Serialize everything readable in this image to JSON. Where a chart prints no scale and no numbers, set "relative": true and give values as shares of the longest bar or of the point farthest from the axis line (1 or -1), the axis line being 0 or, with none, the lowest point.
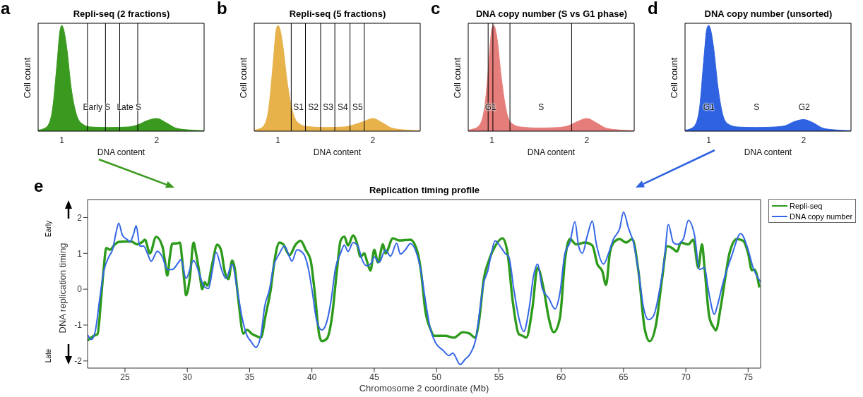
{
  "chart_data": [
    {
      "type": "area",
      "title": "Repli-seq (2 fractions)",
      "xlabel": "DNA content",
      "ylabel": "Cell count",
      "relative": true,
      "color": "#3a9a1f",
      "xlim": [
        0.75,
        2.5
      ],
      "xticks": [
        1,
        2
      ],
      "x": [
        0.75,
        0.8,
        0.85,
        0.9,
        0.95,
        0.98,
        1.0,
        1.02,
        1.05,
        1.1,
        1.15,
        1.2,
        1.3,
        1.5,
        1.7,
        1.8,
        1.9,
        2.0,
        2.1,
        2.2,
        2.3,
        2.5
      ],
      "values": [
        0.01,
        0.02,
        0.05,
        0.2,
        0.65,
        0.95,
        1,
        0.96,
        0.8,
        0.4,
        0.17,
        0.08,
        0.04,
        0.035,
        0.04,
        0.06,
        0.1,
        0.12,
        0.08,
        0.03,
        0.015,
        0.005
      ],
      "ref_lines": [
        {
          "axis": "x",
          "value": 1.27
        },
        {
          "axis": "x",
          "value": 1.46
        },
        {
          "axis": "x",
          "value": 1.61
        },
        {
          "axis": "x",
          "value": 1.8
        }
      ],
      "annotations": [
        "a",
        "Early S",
        "Late S"
      ]
    },
    {
      "type": "area",
      "title": "Repli-seq (5 fractions)",
      "xlabel": "DNA content",
      "ylabel": "Cell count",
      "relative": true,
      "color": "#e8b24a",
      "xlim": [
        0.75,
        2.5
      ],
      "xticks": [
        1,
        2
      ],
      "x": [
        0.75,
        0.8,
        0.85,
        0.9,
        0.95,
        0.98,
        1.0,
        1.02,
        1.05,
        1.1,
        1.15,
        1.2,
        1.3,
        1.5,
        1.7,
        1.8,
        1.9,
        2.0,
        2.1,
        2.2,
        2.3,
        2.5
      ],
      "values": [
        0.01,
        0.02,
        0.05,
        0.2,
        0.65,
        0.95,
        1,
        0.97,
        0.82,
        0.45,
        0.2,
        0.09,
        0.045,
        0.035,
        0.04,
        0.06,
        0.09,
        0.12,
        0.08,
        0.03,
        0.015,
        0.005
      ],
      "ref_lines": [
        {
          "axis": "x",
          "value": 1.14
        },
        {
          "axis": "x",
          "value": 1.29
        },
        {
          "axis": "x",
          "value": 1.45
        },
        {
          "axis": "x",
          "value": 1.6
        },
        {
          "axis": "x",
          "value": 1.76
        },
        {
          "axis": "x",
          "value": 1.91
        }
      ],
      "annotations": [
        "b",
        "S1",
        "S2",
        "S3",
        "S4",
        "S5"
      ]
    },
    {
      "type": "area",
      "title": "DNA copy number (S vs G1 phase)",
      "xlabel": "DNA content",
      "ylabel": "Cell count",
      "relative": true,
      "color": "#e57d7a",
      "xlim": [
        0.75,
        2.5
      ],
      "xticks": [
        1,
        2
      ],
      "x": [
        0.75,
        0.8,
        0.85,
        0.9,
        0.95,
        0.98,
        1.0,
        1.02,
        1.05,
        1.1,
        1.15,
        1.2,
        1.3,
        1.5,
        1.7,
        1.8,
        1.9,
        2.0,
        2.1,
        2.2,
        2.3,
        2.5
      ],
      "values": [
        0.01,
        0.02,
        0.04,
        0.12,
        0.45,
        0.8,
        0.97,
        1,
        0.9,
        0.5,
        0.2,
        0.08,
        0.04,
        0.03,
        0.035,
        0.05,
        0.09,
        0.12,
        0.08,
        0.03,
        0.015,
        0.005
      ],
      "ref_lines": [
        {
          "axis": "x",
          "value": 0.96
        },
        {
          "axis": "x",
          "value": 1.01
        },
        {
          "axis": "x",
          "value": 1.19
        },
        {
          "axis": "x",
          "value": 1.84
        }
      ],
      "annotations": [
        "c",
        "G1",
        "S"
      ]
    },
    {
      "type": "area",
      "title": "DNA copy number (unsorted)",
      "xlabel": "DNA content",
      "ylabel": "Cell count",
      "relative": true,
      "color": "#2f62e0",
      "xlim": [
        0.75,
        2.5
      ],
      "xticks": [
        1,
        2
      ],
      "x": [
        0.75,
        0.8,
        0.85,
        0.9,
        0.95,
        0.98,
        1.0,
        1.02,
        1.05,
        1.1,
        1.15,
        1.2,
        1.3,
        1.5,
        1.7,
        1.8,
        1.9,
        2.0,
        2.1,
        2.2,
        2.3,
        2.5
      ],
      "values": [
        0.01,
        0.02,
        0.05,
        0.2,
        0.7,
        0.97,
        1,
        0.96,
        0.8,
        0.4,
        0.15,
        0.07,
        0.04,
        0.035,
        0.04,
        0.05,
        0.09,
        0.11,
        0.08,
        0.03,
        0.015,
        0.005
      ],
      "annotations": [
        "d",
        "G1",
        "S",
        "G2"
      ]
    },
    {
      "type": "line",
      "title": "Replication timing profile",
      "xlabel": "Chromosome 2 coordinate (Mb)",
      "ylabel": "DNA replication timing",
      "xlim": [
        22,
        76
      ],
      "xticks": [
        25,
        30,
        35,
        40,
        45,
        50,
        55,
        60,
        65,
        70,
        75
      ],
      "ylim": [
        -2.2,
        2.5
      ],
      "yticks": [
        -2,
        -1,
        0,
        1,
        2
      ],
      "legend": "top right",
      "annotations": [
        "e",
        "Early",
        "Late"
      ],
      "series": [
        {
          "name": "Repli-seq",
          "color": "#2c9a1a",
          "x": [
            22,
            22.5,
            22.8,
            23.1,
            23.3,
            23.5,
            23.8,
            24.2,
            24.5,
            25,
            25.5,
            26,
            26.4,
            26.6,
            27,
            27.5,
            28,
            28.2,
            28.4,
            28.6,
            28.8,
            29.2,
            29.4,
            29.6,
            29.8,
            29.9,
            30.2,
            30.5,
            30.7,
            31,
            31.2,
            31.4,
            31.6,
            32,
            32.4,
            32.7,
            33,
            33.3,
            33.6,
            33.8,
            34.1,
            34.5,
            34.8,
            35.2,
            35.5,
            35.9,
            36.3,
            36.7,
            37,
            37.4,
            37.7,
            38.2,
            38.7,
            39.1,
            39.5,
            39.9,
            40.2,
            40.6,
            40.8,
            41.2,
            41.6,
            42,
            42.3,
            42.6,
            42.9,
            43.3,
            43.6,
            43.9,
            44.2,
            44.4,
            44.7,
            45,
            45.3,
            45.7,
            45.9,
            46.5,
            47,
            47.9,
            48.5,
            48.75,
            49.1,
            49.5,
            49.8,
            50.7,
            51.4,
            52.1,
            52.6,
            53.1,
            53.4,
            53.8,
            54.2,
            54.7,
            55.3,
            55.7,
            56.1,
            56.6,
            56.9,
            57.2,
            57.7,
            58.1,
            58.6,
            59,
            59.4,
            59.9,
            60.3,
            60.7,
            61.2,
            61.9,
            62.5,
            62.9,
            63.3,
            63.6,
            63.9,
            64.2,
            64.7,
            65.2,
            65.7,
            66.2,
            66.7,
            67.1,
            67.6,
            68.1,
            68.5,
            68.9,
            69.3,
            69.6,
            70.2,
            70.6,
            71,
            71.3,
            71.5,
            71.9,
            72.3,
            72.4,
            72.8,
            73.2,
            73.5,
            74.1,
            74.6,
            75,
            75.3,
            75.5,
            75.9
          ],
          "values": [
            -1.43,
            -1.3,
            -1.25,
            -0.2,
            0.6,
            1.15,
            1.1,
            1.25,
            1.32,
            1.33,
            1.33,
            1.25,
            1.32,
            1.38,
            1.0,
            1.46,
            1.2,
            0.8,
            0.38,
            0.9,
            1.27,
            1.28,
            1.3,
            0.8,
            0.1,
            -0.17,
            0.3,
            1.3,
            1.0,
            0.4,
            0.0,
            0.2,
            0.1,
            0.7,
            1.24,
            1.1,
            0.5,
            0.28,
            0.8,
            0.6,
            -0.3,
            -1.24,
            -1.13,
            -1.25,
            -1.3,
            -1.35,
            -0.7,
            0.0,
            0.8,
            1.3,
            1.25,
            0.95,
            1.25,
            1.35,
            1.1,
            0.8,
            0.0,
            -1.3,
            -1.45,
            -1.38,
            -0.8,
            0.5,
            1.35,
            1.47,
            1.22,
            1.5,
            1.3,
            0.9,
            1.0,
            0.8,
            0.52,
            1.1,
            0.75,
            1.25,
            1.0,
            1.42,
            1.36,
            1.38,
            1.0,
            0.5,
            -0.6,
            -1.1,
            -1.3,
            -1.3,
            -1.35,
            -1.2,
            -1.23,
            -1.35,
            -0.9,
            0.3,
            0.8,
            1.2,
            1.42,
            1.0,
            -0.3,
            -1.25,
            -1.3,
            -1.35,
            -0.5,
            0.6,
            0.0,
            -0.8,
            -1.2,
            -0.8,
            0.8,
            1.4,
            1.25,
            1.3,
            1.22,
            0.7,
            0.5,
            0.12,
            1.0,
            1.3,
            1.4,
            1.3,
            1.4,
            0.5,
            -1.1,
            -1.45,
            -1.0,
            0.3,
            1.2,
            1.15,
            1.05,
            1.3,
            1.25,
            1.38,
            0.6,
            1.25,
            0.6,
            -0.8,
            -1.1,
            -1.15,
            -0.5,
            0.4,
            1.0,
            1.4,
            1.35,
            1.0,
            0.53,
            0.55,
            0.05
          ]
        },
        {
          "name": "DNA copy number",
          "color": "#3366e6",
          "x": [
            22,
            22.3,
            22.6,
            23,
            23.3,
            23.7,
            24,
            24.3,
            24.5,
            24.8,
            25.2,
            25.4,
            25.7,
            25.9,
            26.2,
            26.5,
            26.8,
            27.1,
            27.6,
            28,
            28.4,
            28.8,
            29.3,
            29.5,
            29.9,
            30.5,
            31,
            31.3,
            31.7,
            32,
            32.3,
            32.8,
            33.1,
            33.6,
            34,
            34.4,
            34.8,
            35.1,
            35.5,
            35.9,
            36.2,
            36.6,
            36.9,
            37.4,
            37.8,
            38.2,
            38.4,
            38.8,
            39.3,
            39.7,
            40,
            40.4,
            40.8,
            41.2,
            41.5,
            41.9,
            42.3,
            42.6,
            42.9,
            43.3,
            43.7,
            44,
            44.4,
            44.8,
            45,
            45.4,
            45.9,
            46.3,
            46.8,
            47.1,
            47.5,
            47.9,
            48.4,
            48.75,
            49.1,
            49.5,
            49.9,
            50.5,
            51,
            51.3,
            51.9,
            52.3,
            52.7,
            53.2,
            53.5,
            53.8,
            54.1,
            54.4,
            54.7,
            55.1,
            55.5,
            55.8,
            56.2,
            56.6,
            57,
            57.4,
            57.8,
            58.1,
            58.5,
            59,
            59.5,
            59.9,
            60.3,
            60.7,
            61.1,
            61.4,
            61.7,
            62.1,
            62.5,
            62.8,
            63.4,
            63.8,
            64.2,
            64.7,
            65,
            65.4,
            65.8,
            66.2,
            66.6,
            67,
            67.4,
            67.8,
            68.3,
            68.6,
            69,
            69.3,
            69.8,
            70.2,
            70.7,
            71.1,
            71.5,
            71.8,
            72.3,
            72.5,
            73,
            73.7,
            74.4,
            75,
            75.4,
            76
          ],
          "values": [
            -1.27,
            -1.4,
            -1.2,
            -0.2,
            0.5,
            0.9,
            1.1,
            1.6,
            1.84,
            1.5,
            1.38,
            1.32,
            1.55,
            1.77,
            1.2,
            1.2,
            1.0,
            0.78,
            1.06,
            0.9,
            0.55,
            0.55,
            0.75,
            0.83,
            0.3,
            0.8,
            0.4,
            0.1,
            0.02,
            0.5,
            1.03,
            0.5,
            0.3,
            0.7,
            0.0,
            -0.8,
            -1.3,
            -1.45,
            -1.62,
            -1.3,
            -0.5,
            0.0,
            0.6,
            1.0,
            1.2,
            0.9,
            0.78,
            1.1,
            1.0,
            0.6,
            0.0,
            -0.9,
            -1.14,
            -0.9,
            -0.4,
            0.6,
            1.0,
            1.23,
            1.05,
            1.3,
            1.2,
            0.85,
            0.65,
            0.75,
            0.9,
            0.75,
            1.1,
            0.92,
            1.28,
            0.98,
            1.1,
            1.27,
            1.0,
            0.5,
            -0.3,
            -1.1,
            -1.48,
            -1.7,
            -1.85,
            -1.78,
            -2.1,
            -1.95,
            -1.8,
            -1.3,
            -0.5,
            0.2,
            0.5,
            1.0,
            1.35,
            1.2,
            1.0,
            0.9,
            0.0,
            -0.8,
            -1.18,
            -0.6,
            0.4,
            0.7,
            0.0,
            -0.25,
            -0.55,
            -0.1,
            1.0,
            1.3,
            1.88,
            1.2,
            1.0,
            1.5,
            1.9,
            1.3,
            0.7,
            1.0,
            1.4,
            1.7,
            2.15,
            1.7,
            1.3,
            0.5,
            -0.5,
            -0.85,
            -0.75,
            -0.2,
            0.9,
            1.8,
            1.3,
            1.25,
            1.4,
            1.92,
            1.5,
            0.55,
            0.6,
            0.0,
            -0.7,
            -0.5,
            0.2,
            0.95,
            1.55,
            1.1,
            0.6,
            0.2
          ]
        }
      ]
    }
  ]
}
